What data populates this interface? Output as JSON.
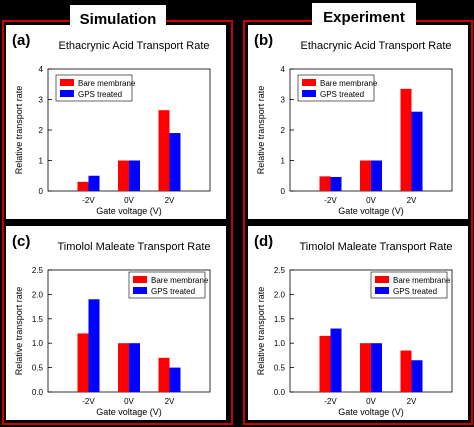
{
  "headings": {
    "simulation": "Simulation",
    "experiment": "Experiment"
  },
  "colors": {
    "bare": "#ff0000",
    "gps": "#0000ff",
    "frame": "#cc0000",
    "background": "#000000"
  },
  "chart_data": [
    {
      "id": "a",
      "panel_label": "(a)",
      "type": "bar",
      "title": "Ethacrynic Acid Transport Rate",
      "xlabel": "Gate voltage (V)",
      "ylabel": "Relative transport rate",
      "categories": [
        "-2V",
        "0V",
        "2V"
      ],
      "ylim": [
        0,
        4
      ],
      "yticks": [
        "0",
        "1",
        "2",
        "3",
        "4"
      ],
      "legend_position": "top-left",
      "series": [
        {
          "name": "Bare membrane",
          "color": "#ff0000",
          "values": [
            0.3,
            1.0,
            2.65
          ]
        },
        {
          "name": "GPS treated",
          "color": "#0000ff",
          "values": [
            0.5,
            1.0,
            1.9
          ]
        }
      ]
    },
    {
      "id": "b",
      "panel_label": "(b)",
      "type": "bar",
      "title": "Ethacrynic Acid Transport Rate",
      "xlabel": "Gate voltage (V)",
      "ylabel": "Relative transport rate",
      "categories": [
        "-2V",
        "0V",
        "2V"
      ],
      "ylim": [
        0,
        4
      ],
      "yticks": [
        "0",
        "1",
        "2",
        "3",
        "4"
      ],
      "legend_position": "top-left",
      "series": [
        {
          "name": "Bare membrane",
          "color": "#ff0000",
          "values": [
            0.48,
            1.0,
            3.35
          ]
        },
        {
          "name": "GPS treated",
          "color": "#0000ff",
          "values": [
            0.46,
            1.0,
            2.6
          ]
        }
      ]
    },
    {
      "id": "c",
      "panel_label": "(c)",
      "type": "bar",
      "title": "Timolol Maleate Transport Rate",
      "xlabel": "Gate voltage (V)",
      "ylabel": "Relative transport rate",
      "categories": [
        "-2V",
        "0V",
        "2V"
      ],
      "ylim": [
        0,
        2.5
      ],
      "yticks": [
        "0.0",
        "0.5",
        "1.0",
        "1.5",
        "2.0",
        "2.5"
      ],
      "legend_position": "top-right",
      "series": [
        {
          "name": "Bare membrane",
          "color": "#ff0000",
          "values": [
            1.2,
            1.0,
            0.7
          ]
        },
        {
          "name": "GPS treated",
          "color": "#0000ff",
          "values": [
            1.9,
            1.0,
            0.5
          ]
        }
      ]
    },
    {
      "id": "d",
      "panel_label": "(d)",
      "type": "bar",
      "title": "Timolol Maleate Transport Rate",
      "xlabel": "Gate voltage (V)",
      "ylabel": "Relative transport rate",
      "categories": [
        "-2V",
        "0V",
        "2V"
      ],
      "ylim": [
        0,
        2.5
      ],
      "yticks": [
        "0.0",
        "0.5",
        "1.0",
        "1.5",
        "2.0",
        "2.5"
      ],
      "legend_position": "top-right",
      "series": [
        {
          "name": "Bare membrane",
          "color": "#ff0000",
          "values": [
            1.15,
            1.0,
            0.85
          ]
        },
        {
          "name": "GPS treated",
          "color": "#0000ff",
          "values": [
            1.3,
            1.0,
            0.65
          ]
        }
      ]
    }
  ]
}
